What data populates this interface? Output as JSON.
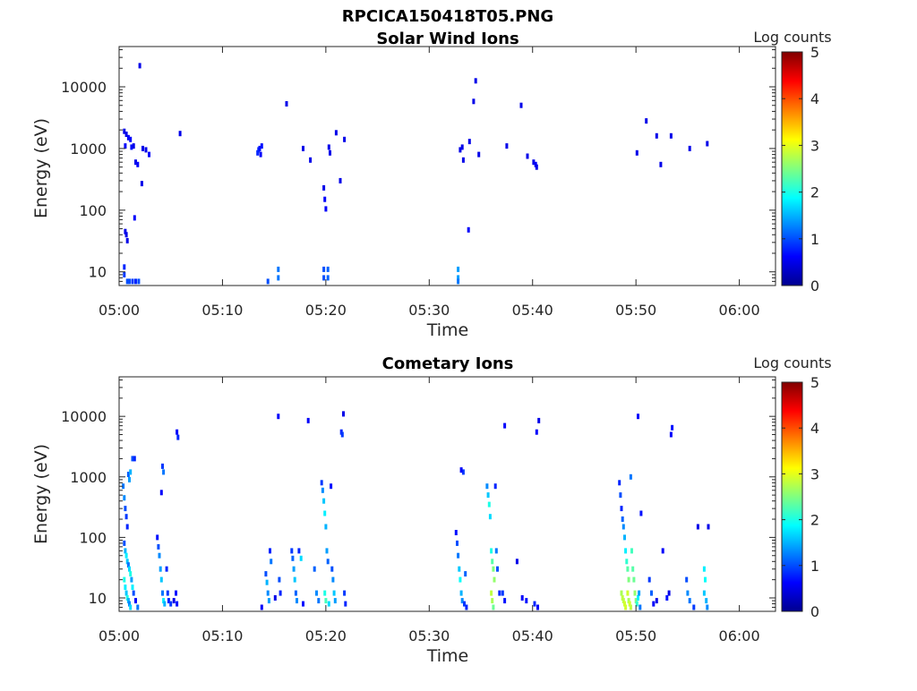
{
  "figure_title": "RPCICA150418T05.PNG",
  "colormap": [
    "#00008f",
    "#0000ff",
    "#0080ff",
    "#00ffff",
    "#80ff80",
    "#ffff00",
    "#ff8000",
    "#ff0000",
    "#800000"
  ],
  "chart_data": [
    {
      "type": "heatmap",
      "title": "Solar Wind Ions",
      "xlabel": "Time",
      "ylabel": "Energy (eV)",
      "x_ticks": [
        "05:00",
        "05:10",
        "05:20",
        "05:30",
        "05:40",
        "05:50",
        "06:00"
      ],
      "x_range_min": [
        0,
        63.5
      ],
      "y_scale": "log",
      "y_ticks": [
        "10",
        "100",
        "1000",
        "10000"
      ],
      "y_range": [
        6,
        45000
      ],
      "colorbar": {
        "label": "Log counts",
        "range": [
          0,
          5
        ],
        "ticks": [
          "0",
          "1",
          "2",
          "3",
          "4",
          "5"
        ]
      },
      "points": [
        [
          0.5,
          1900,
          0.5
        ],
        [
          0.7,
          1700,
          0.5
        ],
        [
          0.9,
          1500,
          0.6
        ],
        [
          1.1,
          1400,
          0.6
        ],
        [
          0.6,
          1100,
          0.6
        ],
        [
          1.2,
          1050,
          0.7
        ],
        [
          1.4,
          1100,
          0.5
        ],
        [
          1.6,
          600,
          0.5
        ],
        [
          1.8,
          550,
          0.6
        ],
        [
          2.0,
          22000,
          0.5
        ],
        [
          2.3,
          1000,
          0.5
        ],
        [
          2.6,
          950,
          0.5
        ],
        [
          2.9,
          800,
          0.6
        ],
        [
          2.2,
          270,
          0.5
        ],
        [
          1.5,
          75,
          0.6
        ],
        [
          0.6,
          45,
          0.5
        ],
        [
          0.7,
          40,
          0.5
        ],
        [
          0.8,
          32,
          0.5
        ],
        [
          0.5,
          12,
          0.8
        ],
        [
          0.5,
          9,
          0.9
        ],
        [
          0.8,
          7,
          1.0
        ],
        [
          1.0,
          7,
          1.0
        ],
        [
          1.3,
          7,
          0.9
        ],
        [
          1.6,
          7,
          0.8
        ],
        [
          1.9,
          7,
          1.0
        ],
        [
          5.9,
          1750,
          0.5
        ],
        [
          13.4,
          850,
          0.8
        ],
        [
          13.5,
          950,
          0.8
        ],
        [
          13.6,
          1000,
          0.7
        ],
        [
          13.8,
          1100,
          0.7
        ],
        [
          13.7,
          800,
          0.6
        ],
        [
          14.4,
          7,
          1.0
        ],
        [
          15.4,
          11,
          1.2
        ],
        [
          15.4,
          8,
          1.2
        ],
        [
          16.2,
          5300,
          0.5
        ],
        [
          17.8,
          1000,
          0.5
        ],
        [
          18.5,
          650,
          0.5
        ],
        [
          19.8,
          230,
          0.5
        ],
        [
          19.9,
          150,
          0.6
        ],
        [
          20.0,
          105,
          0.6
        ],
        [
          20.3,
          1050,
          0.5
        ],
        [
          20.4,
          850,
          0.5
        ],
        [
          21.0,
          1800,
          0.5
        ],
        [
          21.4,
          300,
          0.5
        ],
        [
          21.8,
          1400,
          0.5
        ],
        [
          19.8,
          11,
          1.0
        ],
        [
          19.8,
          8,
          1.0
        ],
        [
          20.2,
          11,
          1.1
        ],
        [
          20.2,
          8,
          1.1
        ],
        [
          32.8,
          11,
          1.4
        ],
        [
          32.8,
          8,
          1.4
        ],
        [
          32.8,
          7,
          1.2
        ],
        [
          33.0,
          950,
          0.5
        ],
        [
          33.2,
          1050,
          0.5
        ],
        [
          33.3,
          650,
          0.5
        ],
        [
          33.9,
          1300,
          0.5
        ],
        [
          33.8,
          48,
          0.6
        ],
        [
          34.3,
          5800,
          0.5
        ],
        [
          34.5,
          12500,
          0.5
        ],
        [
          34.8,
          800,
          0.5
        ],
        [
          37.5,
          1100,
          0.5
        ],
        [
          38.9,
          5000,
          0.5
        ],
        [
          39.5,
          750,
          0.5
        ],
        [
          40.1,
          600,
          0.5
        ],
        [
          40.3,
          550,
          0.6
        ],
        [
          40.4,
          500,
          0.5
        ],
        [
          50.1,
          850,
          0.5
        ],
        [
          51.0,
          2800,
          0.5
        ],
        [
          52.0,
          1600,
          0.5
        ],
        [
          52.4,
          550,
          0.5
        ],
        [
          53.4,
          1600,
          0.5
        ],
        [
          55.2,
          1000,
          0.5
        ],
        [
          56.9,
          1200,
          0.5
        ]
      ]
    },
    {
      "type": "heatmap",
      "title": "Cometary Ions",
      "xlabel": "Time",
      "ylabel": "Energy (eV)",
      "x_ticks": [
        "05:00",
        "05:10",
        "05:20",
        "05:30",
        "05:40",
        "05:50",
        "06:00"
      ],
      "x_range_min": [
        0,
        63.5
      ],
      "y_scale": "log",
      "y_ticks": [
        "10",
        "100",
        "1000",
        "10000"
      ],
      "y_range": [
        6,
        45000
      ],
      "colorbar": {
        "label": "Log counts",
        "range": [
          0,
          5
        ],
        "ticks": [
          "0",
          "1",
          "2",
          "3",
          "4",
          "5"
        ]
      },
      "points": [
        [
          0.4,
          700,
          1.2
        ],
        [
          0.5,
          450,
          1.3
        ],
        [
          0.6,
          300,
          1.0
        ],
        [
          0.7,
          220,
          0.9
        ],
        [
          0.8,
          150,
          0.8
        ],
        [
          0.9,
          1100,
          1.1
        ],
        [
          1.0,
          900,
          1.4
        ],
        [
          1.1,
          1200,
          1.5
        ],
        [
          1.3,
          2000,
          1.0
        ],
        [
          1.5,
          2000,
          0.8
        ],
        [
          0.5,
          80,
          1.0
        ],
        [
          0.6,
          60,
          1.5
        ],
        [
          0.7,
          50,
          1.8
        ],
        [
          0.8,
          40,
          1.6
        ],
        [
          0.9,
          35,
          1.2
        ],
        [
          1.0,
          30,
          1.7
        ],
        [
          1.1,
          25,
          2.0
        ],
        [
          1.2,
          20,
          1.4
        ],
        [
          1.3,
          15,
          1.8
        ],
        [
          1.4,
          12,
          1.0
        ],
        [
          0.5,
          20,
          2.0
        ],
        [
          0.6,
          15,
          1.8
        ],
        [
          0.7,
          12,
          1.6
        ],
        [
          0.8,
          10,
          2.0
        ],
        [
          0.9,
          9,
          1.5
        ],
        [
          1.0,
          8,
          1.3
        ],
        [
          1.1,
          7,
          1.7
        ],
        [
          1.6,
          9,
          0.6
        ],
        [
          1.8,
          7,
          1.2
        ],
        [
          3.7,
          100,
          0.7
        ],
        [
          3.8,
          70,
          1.0
        ],
        [
          3.9,
          50,
          1.3
        ],
        [
          4.0,
          30,
          1.4
        ],
        [
          4.1,
          20,
          1.6
        ],
        [
          4.2,
          12,
          1.2
        ],
        [
          4.3,
          9,
          1.8
        ],
        [
          4.4,
          8,
          1.5
        ],
        [
          4.2,
          1500,
          0.9
        ],
        [
          4.3,
          1200,
          1.2
        ],
        [
          4.1,
          550,
          0.6
        ],
        [
          4.6,
          30,
          0.8
        ],
        [
          4.7,
          12,
          0.9
        ],
        [
          4.8,
          9,
          0.8
        ],
        [
          5.0,
          8,
          0.9
        ],
        [
          5.3,
          9,
          0.5
        ],
        [
          5.6,
          5500,
          0.6
        ],
        [
          5.7,
          4500,
          0.8
        ],
        [
          5.5,
          12,
          0.7
        ],
        [
          5.6,
          8,
          0.7
        ],
        [
          13.8,
          7,
          0.6
        ],
        [
          14.2,
          25,
          1.0
        ],
        [
          14.3,
          18,
          1.5
        ],
        [
          14.4,
          12,
          1.3
        ],
        [
          14.5,
          9,
          1.4
        ],
        [
          14.6,
          60,
          0.8
        ],
        [
          14.7,
          40,
          1.2
        ],
        [
          15.1,
          10,
          0.5
        ],
        [
          15.4,
          10000,
          0.6
        ],
        [
          15.5,
          20,
          1.0
        ],
        [
          15.6,
          12,
          0.8
        ],
        [
          16.7,
          60,
          0.9
        ],
        [
          16.8,
          45,
          1.1
        ],
        [
          16.9,
          30,
          1.4
        ],
        [
          17.0,
          20,
          1.6
        ],
        [
          17.1,
          12,
          1.1
        ],
        [
          17.2,
          9,
          1.3
        ],
        [
          17.4,
          60,
          0.8
        ],
        [
          17.6,
          45,
          1.7
        ],
        [
          17.8,
          8,
          0.7
        ],
        [
          18.3,
          8500,
          0.6
        ],
        [
          18.9,
          30,
          1.1
        ],
        [
          19.1,
          12,
          1.3
        ],
        [
          19.3,
          9,
          1.2
        ],
        [
          19.6,
          800,
          0.9
        ],
        [
          19.7,
          600,
          1.3
        ],
        [
          19.8,
          400,
          1.6
        ],
        [
          19.9,
          250,
          1.8
        ],
        [
          20.0,
          150,
          1.5
        ],
        [
          20.1,
          60,
          1.4
        ],
        [
          20.2,
          40,
          1.1
        ],
        [
          19.9,
          12,
          2.0
        ],
        [
          20.0,
          9,
          2.2
        ],
        [
          20.3,
          8,
          1.7
        ],
        [
          20.5,
          700,
          0.7
        ],
        [
          20.6,
          30,
          1.0
        ],
        [
          20.7,
          20,
          1.3
        ],
        [
          20.8,
          12,
          1.6
        ],
        [
          20.9,
          9,
          1.4
        ],
        [
          21.5,
          5500,
          0.8
        ],
        [
          21.6,
          5000,
          0.9
        ],
        [
          21.7,
          11000,
          0.5
        ],
        [
          21.8,
          12,
          0.9
        ],
        [
          21.9,
          8,
          0.8
        ],
        [
          32.6,
          120,
          0.7
        ],
        [
          32.7,
          80,
          1.0
        ],
        [
          32.8,
          50,
          1.2
        ],
        [
          32.9,
          30,
          1.6
        ],
        [
          33.0,
          20,
          1.9
        ],
        [
          33.1,
          12,
          1.5
        ],
        [
          33.2,
          9,
          1.3
        ],
        [
          33.3,
          1200,
          0.9
        ],
        [
          33.1,
          1300,
          0.6
        ],
        [
          33.4,
          8,
          0.9
        ],
        [
          33.5,
          25,
          1.1
        ],
        [
          33.6,
          7,
          0.8
        ],
        [
          35.6,
          700,
          1.3
        ],
        [
          35.7,
          500,
          1.6
        ],
        [
          35.8,
          350,
          2.0
        ],
        [
          35.9,
          220,
          1.7
        ],
        [
          36.0,
          60,
          2.0
        ],
        [
          36.1,
          40,
          2.3
        ],
        [
          36.2,
          30,
          2.5
        ],
        [
          36.3,
          20,
          2.6
        ],
        [
          36.0,
          12,
          2.8
        ],
        [
          36.1,
          9,
          2.7
        ],
        [
          36.2,
          7,
          2.4
        ],
        [
          36.4,
          700,
          0.8
        ],
        [
          36.5,
          60,
          1.2
        ],
        [
          36.6,
          30,
          1.0
        ],
        [
          36.8,
          12,
          0.8
        ],
        [
          37.1,
          12,
          0.9
        ],
        [
          37.3,
          9,
          0.7
        ],
        [
          37.3,
          7000,
          0.6
        ],
        [
          38.5,
          40,
          0.5
        ],
        [
          39.0,
          10,
          0.6
        ],
        [
          39.4,
          9,
          0.7
        ],
        [
          40.2,
          8,
          0.8
        ],
        [
          40.4,
          5500,
          0.6
        ],
        [
          40.6,
          8500,
          0.5
        ],
        [
          40.5,
          7,
          0.6
        ],
        [
          48.4,
          800,
          0.8
        ],
        [
          48.5,
          500,
          1.0
        ],
        [
          48.6,
          300,
          0.8
        ],
        [
          48.7,
          200,
          1.1
        ],
        [
          48.8,
          150,
          1.3
        ],
        [
          48.9,
          100,
          1.5
        ],
        [
          49.0,
          60,
          1.8
        ],
        [
          49.1,
          40,
          2.1
        ],
        [
          49.2,
          30,
          2.3
        ],
        [
          49.3,
          20,
          2.5
        ],
        [
          48.6,
          12,
          2.7
        ],
        [
          48.7,
          10,
          2.8
        ],
        [
          48.8,
          9,
          2.8
        ],
        [
          48.9,
          8,
          2.9
        ],
        [
          49.0,
          7,
          2.9
        ],
        [
          49.2,
          12,
          2.9
        ],
        [
          49.3,
          9,
          2.7
        ],
        [
          49.4,
          8,
          2.9
        ],
        [
          49.5,
          7,
          2.8
        ],
        [
          49.5,
          1000,
          1.2
        ],
        [
          49.6,
          60,
          2.2
        ],
        [
          49.7,
          30,
          2.3
        ],
        [
          49.8,
          20,
          2.4
        ],
        [
          49.9,
          12,
          2.6
        ],
        [
          50.0,
          9,
          2.5
        ],
        [
          50.1,
          8,
          2.1
        ],
        [
          50.2,
          10,
          1.8
        ],
        [
          50.3,
          12,
          1.4
        ],
        [
          50.4,
          7,
          1.2
        ],
        [
          50.2,
          10000,
          0.6
        ],
        [
          50.5,
          250,
          0.7
        ],
        [
          51.3,
          20,
          0.9
        ],
        [
          51.5,
          12,
          1.1
        ],
        [
          51.7,
          8,
          0.6
        ],
        [
          52.0,
          9,
          0.5
        ],
        [
          52.6,
          60,
          0.6
        ],
        [
          53.0,
          10,
          0.7
        ],
        [
          53.2,
          12,
          0.5
        ],
        [
          53.5,
          6500,
          0.7
        ],
        [
          53.4,
          5000,
          0.6
        ],
        [
          54.9,
          20,
          1.0
        ],
        [
          55.0,
          12,
          1.3
        ],
        [
          55.2,
          9,
          1.2
        ],
        [
          55.6,
          7,
          0.9
        ],
        [
          56.6,
          30,
          1.8
        ],
        [
          56.7,
          20,
          1.9
        ],
        [
          56.6,
          12,
          1.6
        ],
        [
          56.8,
          9,
          1.5
        ],
        [
          56.9,
          7,
          1.3
        ],
        [
          56.0,
          150,
          0.5
        ],
        [
          57.0,
          150,
          0.5
        ]
      ]
    }
  ]
}
